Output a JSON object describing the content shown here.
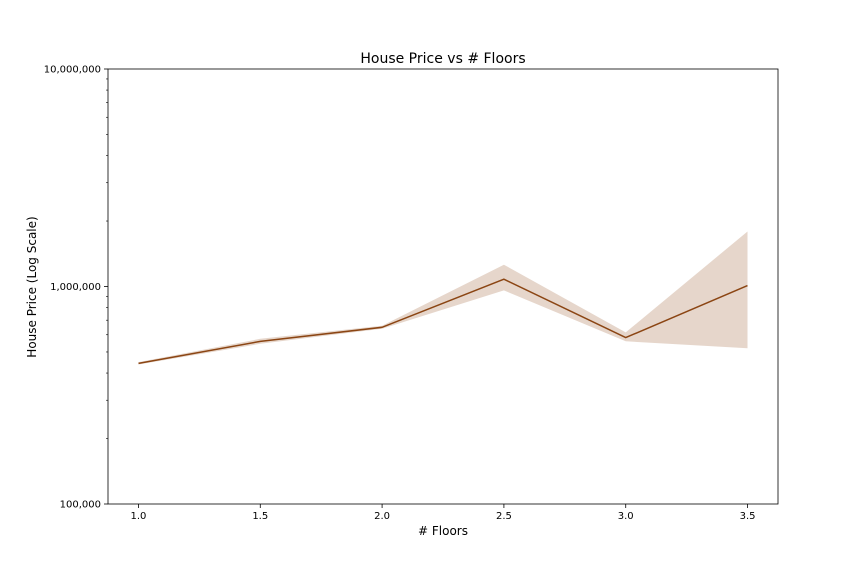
{
  "chart_data": {
    "type": "line",
    "title": "House Price vs # Floors",
    "xlabel": "# Floors",
    "ylabel": "House Price (Log Scale)",
    "yscale": "log",
    "xlim": [
      0.875,
      3.625
    ],
    "ylim": [
      100000,
      10000000
    ],
    "x_ticks": [
      1.0,
      1.5,
      2.0,
      2.5,
      3.0,
      3.5
    ],
    "x_tick_labels": [
      "1.0",
      "1.5",
      "2.0",
      "2.5",
      "3.0",
      "3.5"
    ],
    "y_ticks": [
      100000,
      1000000,
      10000000
    ],
    "y_tick_labels": [
      "100,000",
      "1,000,000",
      "10,000,000"
    ],
    "grid": false,
    "series": [
      {
        "x": [
          1.0,
          1.5,
          2.0,
          2.5,
          3.0,
          3.5
        ],
        "values": [
          443000,
          559000,
          649000,
          1080000,
          582000,
          1010000
        ],
        "ci_lower": [
          438000,
          545000,
          640000,
          960000,
          560000,
          520000
        ],
        "ci_upper": [
          449000,
          575000,
          660000,
          1260000,
          615000,
          1790000
        ],
        "color": "#8B4513",
        "band_color": "#8B4513"
      }
    ]
  }
}
